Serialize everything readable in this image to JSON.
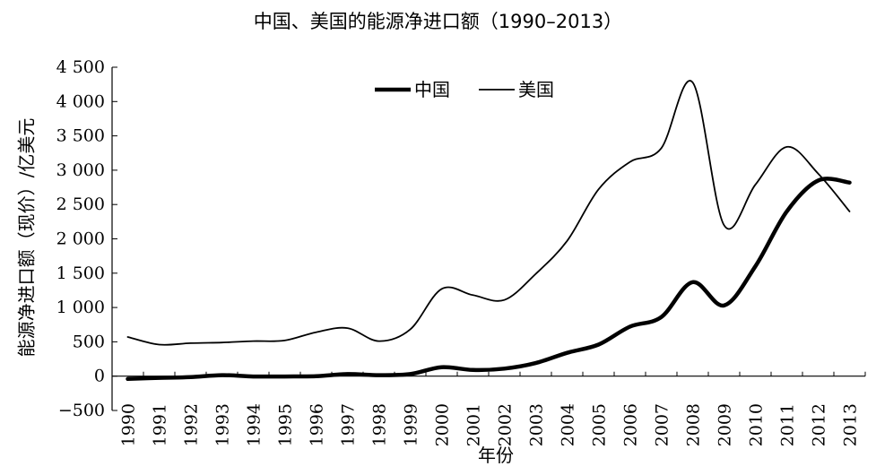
{
  "chart_data": {
    "type": "line",
    "title": "中国、美国的能源净进口额（1990–2013）",
    "xlabel": "年份",
    "ylabel": "能源净进口额（现价）/亿美元",
    "categories": [
      "1990",
      "1991",
      "1992",
      "1993",
      "1994",
      "1995",
      "1996",
      "1997",
      "1998",
      "1999",
      "2000",
      "2001",
      "2002",
      "2003",
      "2004",
      "2005",
      "2006",
      "2007",
      "2008",
      "2009",
      "2010",
      "2011",
      "2012",
      "2013"
    ],
    "yticks": [
      "−500",
      "0",
      "500",
      "1 000",
      "1 500",
      "2 000",
      "2 500",
      "3 000",
      "3 500",
      "4 000",
      "4 500"
    ],
    "ylim": [
      -500,
      4500
    ],
    "grid": false,
    "legend_position": "top-center",
    "series": [
      {
        "name": "中国",
        "style": "thick",
        "values": [
          -40,
          -25,
          -15,
          15,
          -5,
          -5,
          0,
          30,
          15,
          30,
          130,
          90,
          110,
          190,
          340,
          460,
          720,
          860,
          1370,
          1030,
          1600,
          2400,
          2850,
          2820
        ]
      },
      {
        "name": "美国",
        "style": "thin",
        "values": [
          570,
          460,
          480,
          490,
          510,
          520,
          640,
          700,
          510,
          680,
          1270,
          1180,
          1110,
          1490,
          1970,
          2720,
          3120,
          3320,
          4280,
          2200,
          2790,
          3340,
          2950,
          2400
        ]
      }
    ]
  }
}
